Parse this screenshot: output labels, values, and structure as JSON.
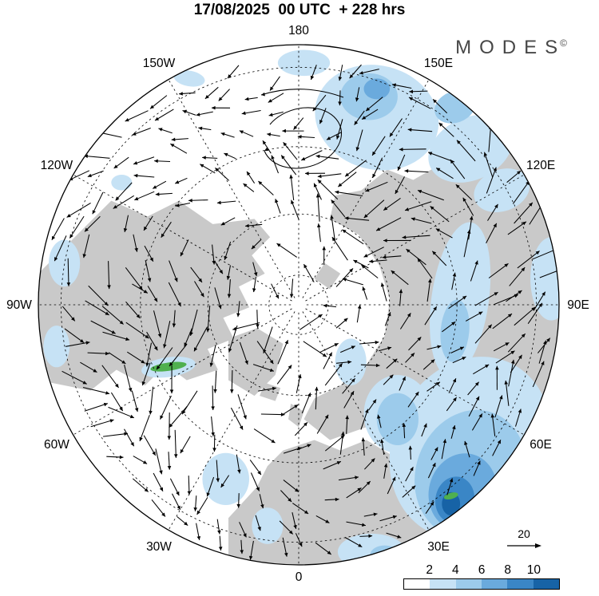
{
  "header": {
    "title": "17/08/2025  00 UTC  + 228 hrs"
  },
  "logo": {
    "text": "MODES",
    "mark": "©"
  },
  "chart_data": {
    "type": "vector_field_map",
    "projection": "north_polar_stereographic",
    "title": "17/08/2025 00 UTC + 228 hrs",
    "lon_labels": [
      {
        "label": "180",
        "lon": 180
      },
      {
        "label": "150E",
        "lon": 150
      },
      {
        "label": "120E",
        "lon": 120
      },
      {
        "label": "90E",
        "lon": 90
      },
      {
        "label": "60E",
        "lon": 60
      },
      {
        "label": "30E",
        "lon": 30
      },
      {
        "label": "0",
        "lon": 0
      },
      {
        "label": "30W",
        "lon": -30
      },
      {
        "label": "60W",
        "lon": -60
      },
      {
        "label": "90W",
        "lon": -90
      },
      {
        "label": "120W",
        "lon": -120
      },
      {
        "label": "150W",
        "lon": -150
      }
    ],
    "colorbar": {
      "ticks": [
        "2",
        "4",
        "6",
        "8",
        "10"
      ],
      "colors": [
        "#ffffff",
        "#c6e2f5",
        "#9ccbeb",
        "#6aaadd",
        "#3a86c6",
        "#1763a6"
      ],
      "extra_color": "#4fb04f"
    },
    "reference_vector": {
      "label": "20",
      "value": 20
    },
    "land_color": "#c9c9c9",
    "sea_color": "#ffffff",
    "graticule": {
      "lat_circle_radii": [
        0.114,
        0.349,
        0.608,
        0.913
      ],
      "meridian_step_deg": 30
    },
    "land_polygons": [
      [
        [
          -0.95,
          0.3
        ],
        [
          -1.02,
          0.1
        ],
        [
          -1.0,
          -0.12
        ],
        [
          -0.86,
          -0.26
        ],
        [
          -0.72,
          -0.4
        ],
        [
          -0.58,
          -0.34
        ],
        [
          -0.46,
          -0.4
        ],
        [
          -0.33,
          -0.31
        ],
        [
          -0.17,
          -0.33
        ],
        [
          -0.11,
          -0.26
        ],
        [
          -0.18,
          -0.19
        ],
        [
          -0.13,
          -0.12
        ],
        [
          -0.23,
          -0.07
        ],
        [
          -0.19,
          0.01
        ],
        [
          -0.29,
          0.05
        ],
        [
          -0.25,
          0.13
        ],
        [
          -0.35,
          0.17
        ],
        [
          -0.31,
          0.25
        ],
        [
          -0.43,
          0.29
        ],
        [
          -0.51,
          0.23
        ],
        [
          -0.59,
          0.31
        ],
        [
          -0.7,
          0.25
        ],
        [
          -0.8,
          0.33
        ]
      ],
      [
        [
          -0.27,
          0.13
        ],
        [
          -0.16,
          0.09
        ],
        [
          -0.06,
          0.15
        ],
        [
          -0.09,
          0.27
        ],
        [
          -0.17,
          0.35
        ],
        [
          -0.27,
          0.29
        ]
      ],
      [
        [
          -0.13,
          0.3
        ],
        [
          -0.07,
          0.32
        ],
        [
          -0.09,
          0.37
        ],
        [
          -0.15,
          0.35
        ]
      ],
      [
        [
          -0.03,
          0.38
        ],
        [
          0.02,
          0.41
        ],
        [
          0.0,
          0.47
        ],
        [
          -0.04,
          0.44
        ]
      ],
      [
        [
          0.12,
          -0.33
        ],
        [
          0.23,
          -0.27
        ],
        [
          0.31,
          -0.15
        ],
        [
          0.35,
          -0.02
        ],
        [
          0.33,
          0.12
        ],
        [
          0.26,
          0.23
        ],
        [
          0.16,
          0.31
        ],
        [
          0.06,
          0.36
        ],
        [
          0.02,
          0.44
        ],
        [
          0.12,
          0.52
        ],
        [
          0.26,
          0.47
        ],
        [
          0.38,
          0.44
        ],
        [
          0.48,
          0.56
        ],
        [
          0.62,
          0.64
        ],
        [
          0.78,
          0.56
        ],
        [
          0.92,
          0.42
        ],
        [
          1.02,
          0.22
        ],
        [
          1.06,
          0.0
        ],
        [
          1.02,
          -0.28
        ],
        [
          0.9,
          -0.5
        ],
        [
          0.76,
          -0.64
        ],
        [
          0.58,
          -0.56
        ],
        [
          0.44,
          -0.48
        ],
        [
          0.34,
          -0.52
        ],
        [
          0.24,
          -0.44
        ],
        [
          0.14,
          -0.42
        ]
      ],
      [
        [
          -0.06,
          0.56
        ],
        [
          0.06,
          0.52
        ],
        [
          0.16,
          0.56
        ],
        [
          0.26,
          0.52
        ],
        [
          0.36,
          0.58
        ],
        [
          0.46,
          0.68
        ],
        [
          0.52,
          0.82
        ],
        [
          0.45,
          0.98
        ],
        [
          0.2,
          1.08
        ],
        [
          -0.1,
          1.08
        ],
        [
          -0.27,
          0.96
        ],
        [
          -0.27,
          0.82
        ],
        [
          -0.16,
          0.7
        ],
        [
          -0.12,
          0.62
        ]
      ],
      [
        [
          0.1,
          -0.16
        ],
        [
          0.16,
          -0.12
        ],
        [
          0.12,
          -0.06
        ],
        [
          0.06,
          -0.1
        ]
      ]
    ],
    "shaded_regions": [
      {
        "cx": 0.3,
        "cy": -0.72,
        "rx": 0.24,
        "ry": 0.2,
        "rot": 15,
        "level": 1
      },
      {
        "cx": 0.27,
        "cy": -0.8,
        "rx": 0.11,
        "ry": 0.09,
        "rot": 0,
        "level": 2
      },
      {
        "cx": 0.3,
        "cy": -0.83,
        "rx": 0.05,
        "ry": 0.04,
        "rot": 0,
        "level": 3
      },
      {
        "cx": 0.66,
        "cy": -0.6,
        "rx": 0.17,
        "ry": 0.12,
        "rot": -25,
        "level": 1
      },
      {
        "cx": 0.8,
        "cy": -0.8,
        "rx": 0.1,
        "ry": 0.07,
        "rot": -30,
        "level": 1
      },
      {
        "cx": 0.6,
        "cy": -0.76,
        "rx": 0.08,
        "ry": 0.06,
        "rot": -20,
        "level": 2
      },
      {
        "cx": 0.02,
        "cy": -0.93,
        "rx": 0.1,
        "ry": 0.05,
        "rot": 0,
        "level": 1
      },
      {
        "cx": -0.42,
        "cy": -0.87,
        "rx": 0.06,
        "ry": 0.03,
        "rot": 10,
        "level": 1
      },
      {
        "cx": -0.68,
        "cy": -0.47,
        "rx": 0.04,
        "ry": 0.03,
        "rot": 0,
        "level": 1
      },
      {
        "cx": 0.78,
        "cy": -0.44,
        "rx": 0.11,
        "ry": 0.08,
        "rot": -20,
        "level": 1
      },
      {
        "cx": 0.62,
        "cy": -0.02,
        "rx": 0.11,
        "ry": 0.3,
        "rot": 8,
        "level": 1
      },
      {
        "cx": 0.6,
        "cy": 0.1,
        "rx": 0.055,
        "ry": 0.12,
        "rot": 5,
        "level": 2
      },
      {
        "cx": 0.97,
        "cy": -0.1,
        "rx": 0.08,
        "ry": 0.16,
        "rot": 0,
        "level": 1
      },
      {
        "cx": 0.66,
        "cy": 0.55,
        "rx": 0.3,
        "ry": 0.36,
        "rot": 25,
        "level": 1
      },
      {
        "cx": 0.66,
        "cy": 0.65,
        "rx": 0.21,
        "ry": 0.25,
        "rot": 20,
        "level": 2
      },
      {
        "cx": 0.63,
        "cy": 0.72,
        "rx": 0.13,
        "ry": 0.15,
        "rot": 15,
        "level": 3
      },
      {
        "cx": 0.6,
        "cy": 0.75,
        "rx": 0.075,
        "ry": 0.09,
        "rot": 10,
        "level": 4
      },
      {
        "cx": 0.585,
        "cy": 0.765,
        "rx": 0.035,
        "ry": 0.045,
        "rot": 0,
        "level": 5
      },
      {
        "cx": 0.585,
        "cy": 0.735,
        "rx": 0.028,
        "ry": 0.012,
        "rot": -15,
        "level": "green"
      },
      {
        "cx": -0.5,
        "cy": 0.24,
        "rx": 0.105,
        "ry": 0.038,
        "rot": -8,
        "level": 1
      },
      {
        "cx": -0.5,
        "cy": 0.238,
        "rx": 0.07,
        "ry": 0.016,
        "rot": -8,
        "level": "green"
      },
      {
        "cx": -0.9,
        "cy": -0.16,
        "rx": 0.06,
        "ry": 0.09,
        "rot": 0,
        "level": 1
      },
      {
        "cx": -0.93,
        "cy": 0.16,
        "rx": 0.05,
        "ry": 0.08,
        "rot": 0,
        "level": 1
      },
      {
        "cx": 0.2,
        "cy": 0.22,
        "rx": 0.06,
        "ry": 0.09,
        "rot": 0,
        "level": 1
      },
      {
        "cx": 0.38,
        "cy": 0.42,
        "rx": 0.13,
        "ry": 0.15,
        "rot": 0,
        "level": 1
      },
      {
        "cx": 0.38,
        "cy": 0.44,
        "rx": 0.08,
        "ry": 0.1,
        "rot": 0,
        "level": 2
      },
      {
        "cx": -0.28,
        "cy": 0.67,
        "rx": 0.09,
        "ry": 0.1,
        "rot": 0,
        "level": 1
      },
      {
        "cx": -0.12,
        "cy": 0.85,
        "rx": 0.06,
        "ry": 0.07,
        "rot": 0,
        "level": 1
      },
      {
        "cx": 0.28,
        "cy": 0.95,
        "rx": 0.13,
        "ry": 0.07,
        "rot": 0,
        "level": 1
      },
      {
        "cx": 0.33,
        "cy": 0.96,
        "rx": 0.055,
        "ry": 0.035,
        "rot": 0,
        "level": 2
      }
    ],
    "arrow_field": {
      "style": "circumpolar_westerly",
      "grid_step": 0.082,
      "color": "#000000"
    }
  }
}
